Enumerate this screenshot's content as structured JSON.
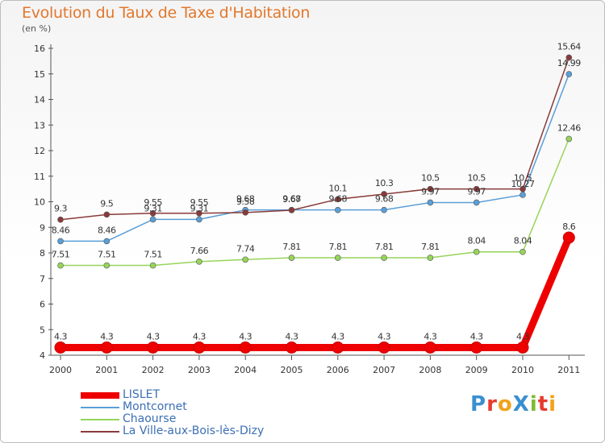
{
  "header": {
    "title": "Evolution du Taux de Taxe d'Habitation",
    "unit": "(en %)"
  },
  "logo": {
    "text": "ProXiti",
    "colors": [
      "#3a8fd0",
      "#e63b2e",
      "#f2a21b",
      "#3a8fd0",
      "#7dbb2f",
      "#e63b2e",
      "#f2a21b"
    ]
  },
  "chart_data": {
    "type": "line",
    "x": [
      "2000",
      "2001",
      "2002",
      "2003",
      "2004",
      "2005",
      "2006",
      "2007",
      "2008",
      "2009",
      "2010",
      "2011"
    ],
    "ylim": [
      4,
      16
    ],
    "yticks": [
      4,
      5,
      6,
      7,
      8,
      9,
      10,
      11,
      12,
      13,
      14,
      15,
      16
    ],
    "grid": false,
    "legend_position": "bottom-left",
    "series": [
      {
        "name": "LISLET",
        "color": "#ee0000",
        "values": [
          4.3,
          4.3,
          4.3,
          4.3,
          4.3,
          4.3,
          4.3,
          4.3,
          4.3,
          4.3,
          4.3,
          8.6
        ],
        "labels": [
          "4.3",
          "4.3",
          "4.3",
          "4.3",
          "4.3",
          "4.3",
          "4.3",
          "4.3",
          "4.3",
          "4.3",
          "4.3",
          "8.6"
        ]
      },
      {
        "name": "Montcornet",
        "color": "#5a9fd8",
        "values": [
          8.46,
          8.46,
          9.31,
          9.31,
          9.68,
          9.68,
          9.68,
          9.68,
          9.97,
          9.97,
          10.27,
          14.99
        ],
        "labels": [
          "8.46",
          "8.46",
          "9.31",
          "9.31",
          "9.68",
          "9.68",
          "9.68",
          "9.68",
          "9.97",
          "9.97",
          "10.27",
          "14.99"
        ]
      },
      {
        "name": "Chaourse",
        "color": "#96d45a",
        "values": [
          7.51,
          7.51,
          7.51,
          7.66,
          7.74,
          7.81,
          7.81,
          7.81,
          7.81,
          8.04,
          8.04,
          12.46
        ],
        "labels": [
          "7.51",
          "7.51",
          "7.51",
          "7.66",
          "7.74",
          "7.81",
          "7.81",
          "7.81",
          "7.81",
          "8.04",
          "8.04",
          "12.46"
        ]
      },
      {
        "name": "La Ville-aux-Bois-lès-Dizy",
        "color": "#8a3a3a",
        "values": [
          9.3,
          9.5,
          9.55,
          9.55,
          9.58,
          9.67,
          10.1,
          10.3,
          10.5,
          10.5,
          10.5,
          15.64
        ],
        "labels": [
          "9.3",
          "9.5",
          "9.55",
          "9.55",
          "9.58",
          "9.67",
          "10.1",
          "10.3",
          "10.5",
          "10.5",
          "10.5",
          "15.64"
        ]
      }
    ]
  }
}
